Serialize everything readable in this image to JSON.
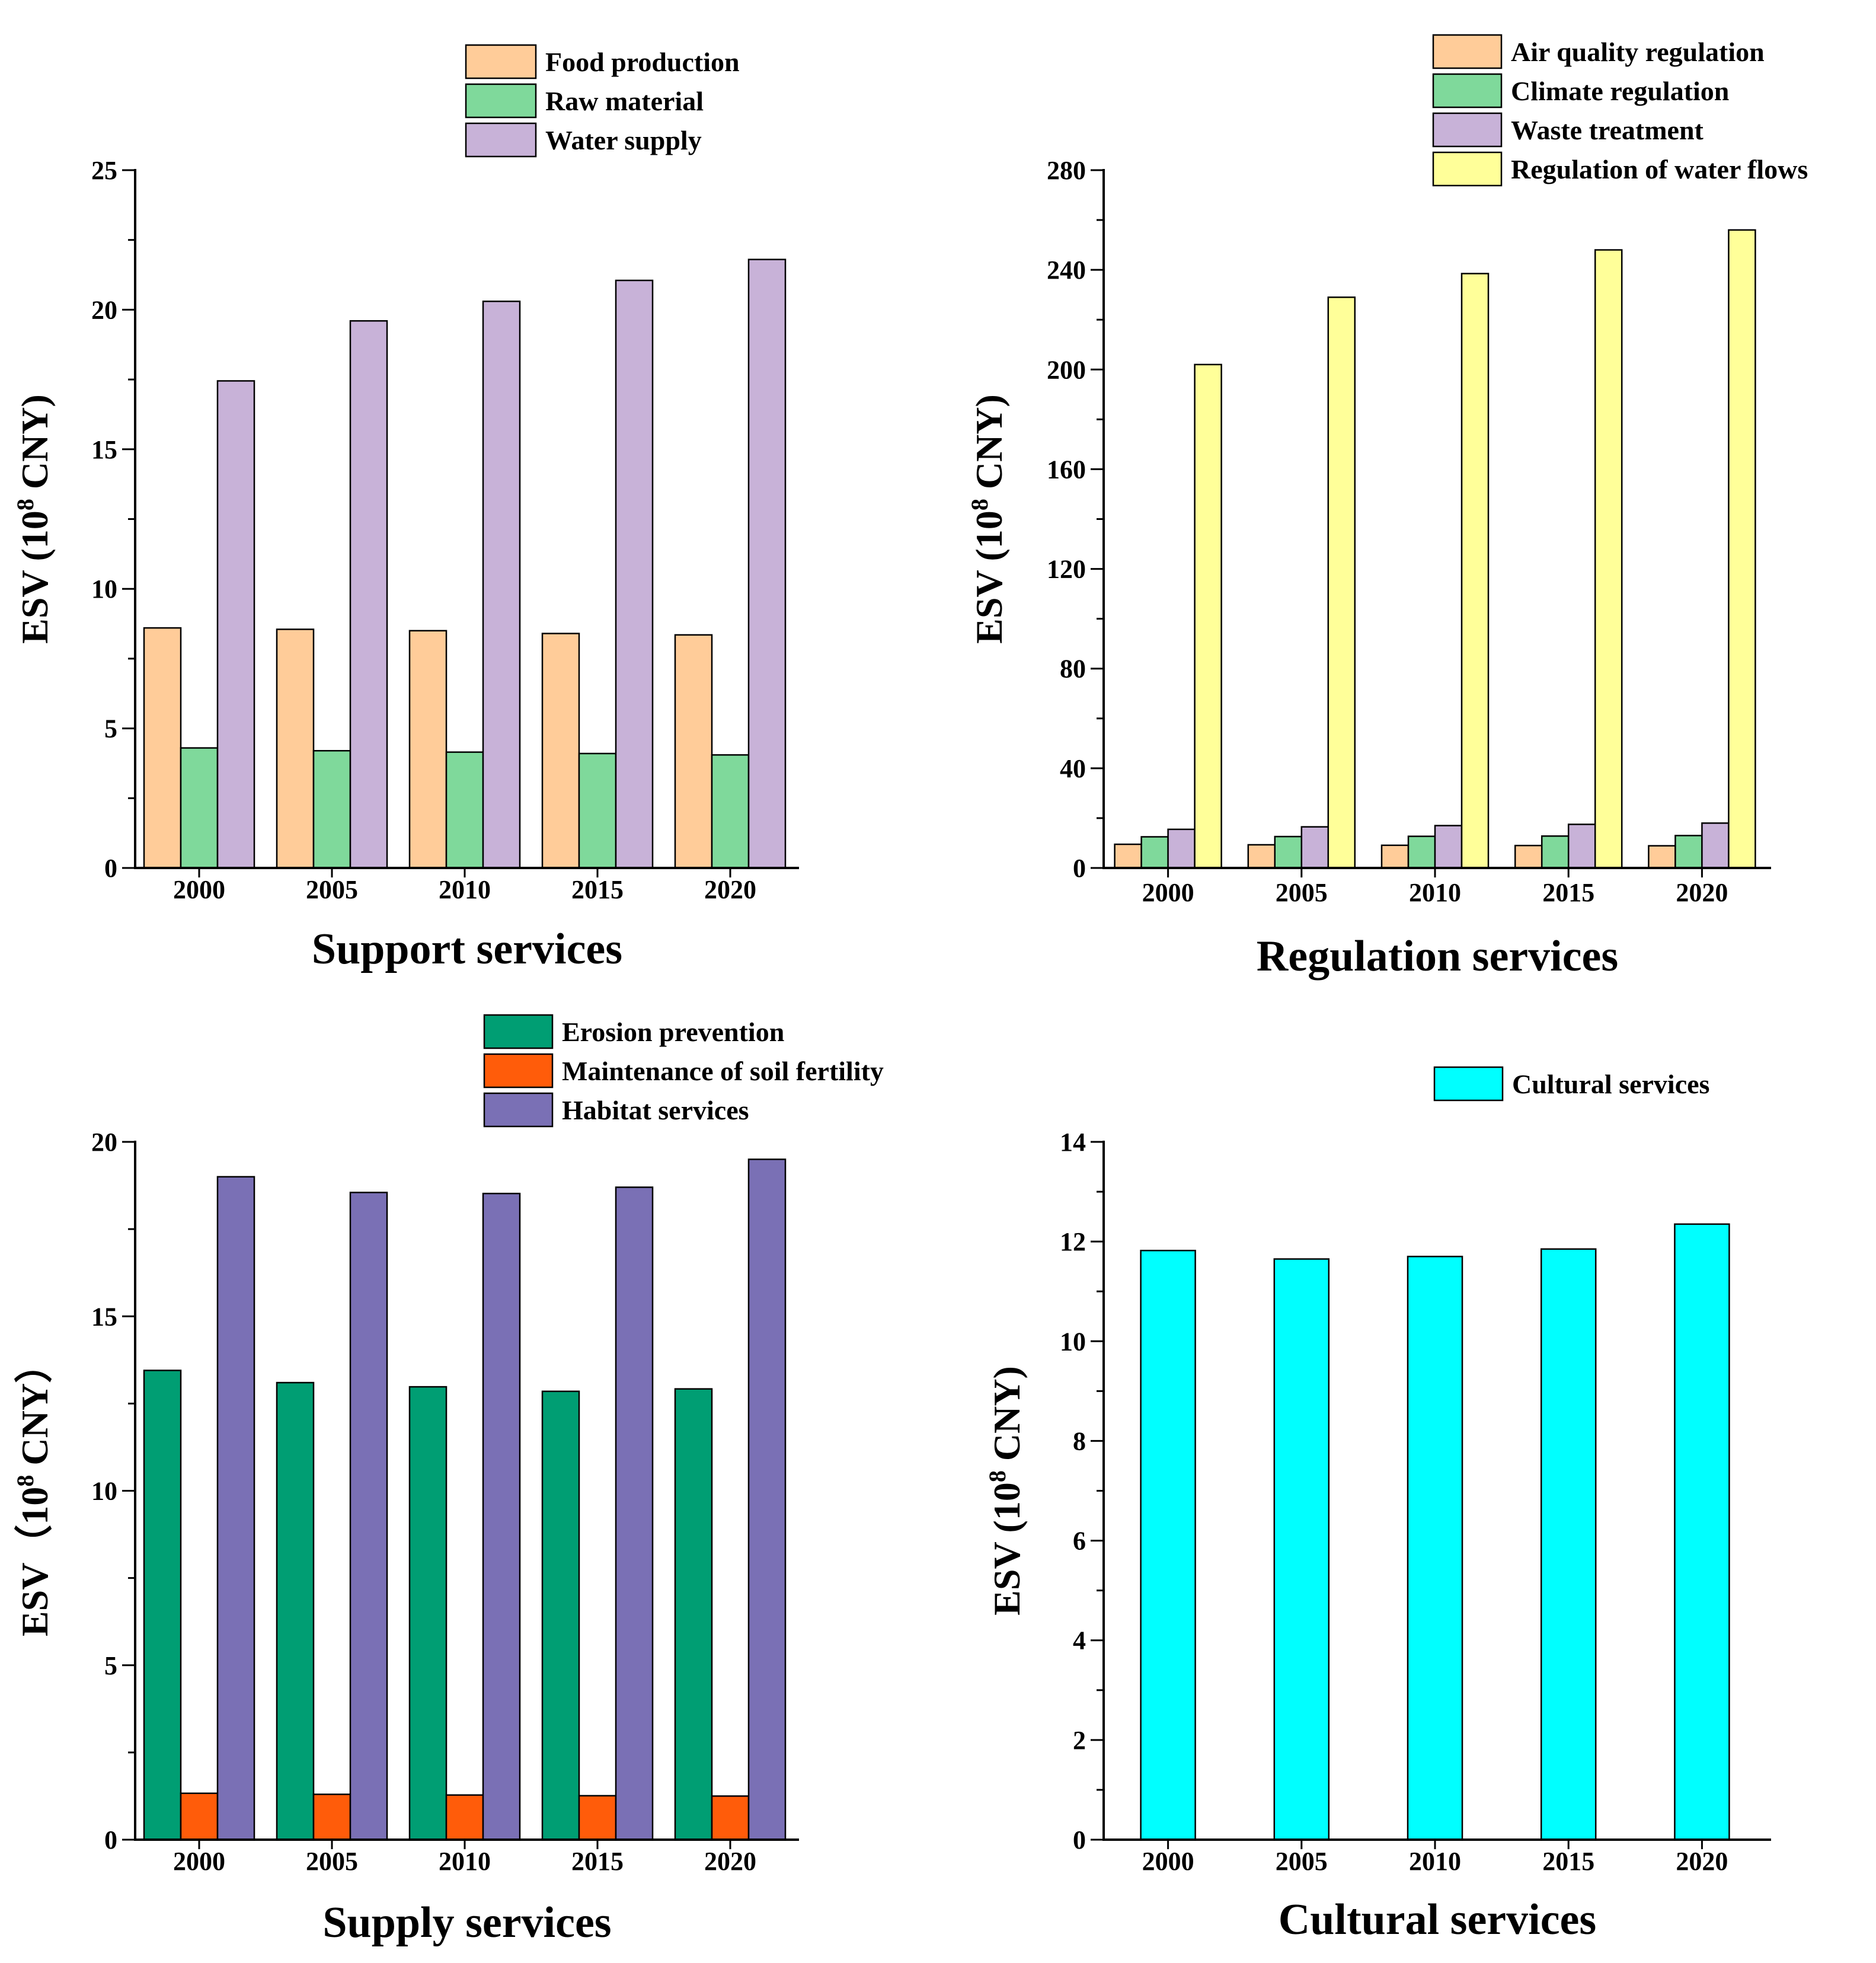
{
  "y_unit_superscript": "8",
  "chart_data": [
    {
      "type": "bar",
      "title": "",
      "xlabel": "Support services",
      "ylabel": "ESV (10{sup} CNY)",
      "categories": [
        "2000",
        "2005",
        "2010",
        "2015",
        "2020"
      ],
      "ylim": [
        0,
        25
      ],
      "yticks": [
        "0",
        "5",
        "10",
        "15",
        "20",
        "25"
      ],
      "legend_position": "top-center",
      "series": [
        {
          "name": "Food production",
          "color": "#FFCC99",
          "values": [
            8.6,
            8.55,
            8.5,
            8.4,
            8.35
          ]
        },
        {
          "name": "Raw material",
          "color": "#7FD99B",
          "values": [
            4.3,
            4.2,
            4.15,
            4.1,
            4.05
          ]
        },
        {
          "name": "Water supply",
          "color": "#C8B2D8",
          "values": [
            17.45,
            19.6,
            20.3,
            21.05,
            21.8
          ]
        }
      ]
    },
    {
      "type": "bar",
      "title": "",
      "xlabel": "Regulation services",
      "ylabel": "ESV (10{sup} CNY)",
      "categories": [
        "2000",
        "2005",
        "2010",
        "2015",
        "2020"
      ],
      "ylim": [
        0,
        280
      ],
      "yticks": [
        "0",
        "40",
        "80",
        "120",
        "160",
        "200",
        "240",
        "280"
      ],
      "legend_position": "top-right",
      "series": [
        {
          "name": "Air quality regulation",
          "color": "#FFCC99",
          "values": [
            9.5,
            9.3,
            9.1,
            9.0,
            8.9
          ]
        },
        {
          "name": "Climate regulation",
          "color": "#7FD99B",
          "values": [
            12.5,
            12.6,
            12.7,
            12.8,
            13.0
          ]
        },
        {
          "name": "Waste treatment",
          "color": "#C8B2D8",
          "values": [
            15.5,
            16.5,
            17.0,
            17.5,
            18.0
          ]
        },
        {
          "name": "Regulation of water flows",
          "color": "#FFFF99",
          "values": [
            202,
            229,
            238.5,
            248,
            256
          ]
        }
      ]
    },
    {
      "type": "bar",
      "title": "",
      "xlabel": "Supply services",
      "ylabel": "ESV（10{sup} CNY）",
      "categories": [
        "2000",
        "2005",
        "2010",
        "2015",
        "2020"
      ],
      "ylim": [
        0,
        20
      ],
      "yticks": [
        "0",
        "5",
        "10",
        "15",
        "20"
      ],
      "legend_position": "top-center",
      "series": [
        {
          "name": "Erosion prevention",
          "color": "#009E73",
          "values": [
            13.45,
            13.1,
            12.98,
            12.85,
            12.92
          ]
        },
        {
          "name": "Maintenance of soil fertility",
          "color": "#FF5C0A",
          "values": [
            1.33,
            1.3,
            1.28,
            1.26,
            1.25
          ]
        },
        {
          "name": "Habitat services",
          "color": "#7A70B5",
          "values": [
            19.0,
            18.55,
            18.52,
            18.7,
            19.5
          ]
        }
      ]
    },
    {
      "type": "bar",
      "title": "",
      "xlabel": "Cultural services",
      "ylabel": "ESV (10{sup} CNY)",
      "categories": [
        "2000",
        "2005",
        "2010",
        "2015",
        "2020"
      ],
      "ylim": [
        0,
        14
      ],
      "yticks": [
        "0",
        "2",
        "4",
        "6",
        "8",
        "10",
        "12",
        "14"
      ],
      "legend_position": "top-right",
      "series": [
        {
          "name": "Cultural services",
          "color": "#00FFFF",
          "values": [
            11.82,
            11.65,
            11.7,
            11.85,
            12.35
          ]
        }
      ]
    }
  ]
}
